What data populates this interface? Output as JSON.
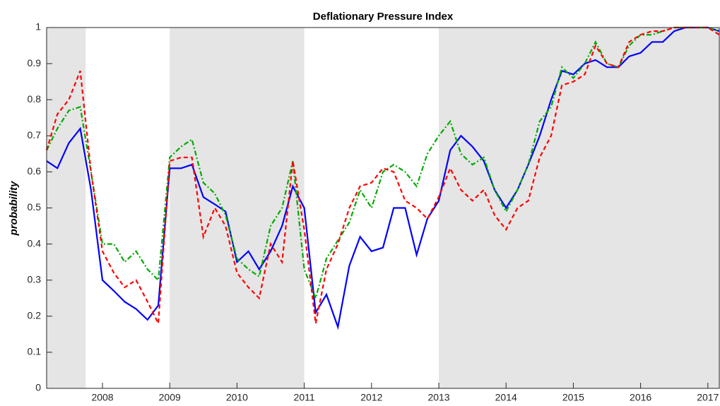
{
  "chart_data": {
    "type": "line",
    "title": "Deflationary Pressure Index",
    "y_label": "probability",
    "x": [
      2007.17,
      2007.33,
      2007.5,
      2007.67,
      2007.83,
      2008,
      2008.17,
      2008.33,
      2008.5,
      2008.67,
      2008.83,
      2009,
      2009.17,
      2009.33,
      2009.5,
      2009.67,
      2009.83,
      2010,
      2010.17,
      2010.33,
      2010.5,
      2010.67,
      2010.83,
      2011,
      2011.17,
      2011.33,
      2011.5,
      2011.67,
      2011.83,
      2012,
      2012.17,
      2012.33,
      2012.5,
      2012.67,
      2012.83,
      2013,
      2013.17,
      2013.33,
      2013.5,
      2013.67,
      2013.83,
      2014,
      2014.17,
      2014.33,
      2014.5,
      2014.67,
      2014.83,
      2015,
      2015.17,
      2015.33,
      2015.5,
      2015.67,
      2015.83,
      2016,
      2016.17,
      2016.33,
      2016.5,
      2016.67,
      2016.83,
      2017,
      2017.17
    ],
    "series": [
      {
        "color": "#0000ff",
        "linestyle": "solid",
        "values": [
          0.63,
          0.61,
          0.68,
          0.72,
          0.55,
          0.3,
          0.27,
          0.24,
          0.22,
          0.19,
          0.23,
          0.61,
          0.61,
          0.62,
          0.53,
          0.51,
          0.49,
          0.35,
          0.38,
          0.33,
          0.38,
          0.45,
          0.56,
          0.5,
          0.21,
          0.26,
          0.17,
          0.34,
          0.42,
          0.38,
          0.39,
          0.5,
          0.5,
          0.37,
          0.47,
          0.52,
          0.66,
          0.7,
          0.67,
          0.63,
          0.55,
          0.5,
          0.55,
          0.62,
          0.7,
          0.8,
          0.88,
          0.87,
          0.9,
          0.91,
          0.89,
          0.89,
          0.92,
          0.93,
          0.96,
          0.96,
          0.99,
          1,
          1,
          1,
          0.99
        ]
      },
      {
        "color": "#00aa00",
        "linestyle": "dashdot",
        "values": [
          0.66,
          0.72,
          0.77,
          0.78,
          0.6,
          0.4,
          0.4,
          0.35,
          0.38,
          0.33,
          0.3,
          0.64,
          0.67,
          0.69,
          0.57,
          0.54,
          0.48,
          0.36,
          0.33,
          0.31,
          0.45,
          0.5,
          0.63,
          0.33,
          0.25,
          0.36,
          0.41,
          0.46,
          0.55,
          0.5,
          0.6,
          0.62,
          0.6,
          0.56,
          0.65,
          0.7,
          0.74,
          0.65,
          0.62,
          0.64,
          0.55,
          0.49,
          0.55,
          0.62,
          0.74,
          0.78,
          0.89,
          0.86,
          0.9,
          0.96,
          0.9,
          0.89,
          0.95,
          0.98,
          0.98,
          0.99,
          1,
          1,
          1,
          1,
          0.99
        ]
      },
      {
        "color": "#ff0000",
        "linestyle": "dashed",
        "values": [
          0.66,
          0.76,
          0.8,
          0.88,
          0.6,
          0.38,
          0.32,
          0.28,
          0.3,
          0.24,
          0.18,
          0.63,
          0.64,
          0.64,
          0.42,
          0.5,
          0.45,
          0.32,
          0.28,
          0.25,
          0.4,
          0.35,
          0.63,
          0.44,
          0.18,
          0.33,
          0.4,
          0.5,
          0.56,
          0.57,
          0.61,
          0.6,
          0.52,
          0.5,
          0.47,
          0.53,
          0.61,
          0.55,
          0.52,
          0.55,
          0.48,
          0.44,
          0.5,
          0.52,
          0.64,
          0.7,
          0.84,
          0.85,
          0.87,
          0.95,
          0.9,
          0.89,
          0.96,
          0.98,
          0.99,
          0.99,
          1,
          1,
          1,
          1,
          0.98
        ]
      }
    ],
    "shaded_regions": [
      [
        2007.17,
        2007.75
      ],
      [
        2009,
        2011
      ],
      [
        2013,
        2017.17
      ]
    ],
    "shade_color": "#e5e5e5",
    "xlim": [
      2007.17,
      2017.17
    ],
    "xticks": [
      2008,
      2009,
      2010,
      2011,
      2012,
      2013,
      2014,
      2015,
      2016,
      2017
    ],
    "ylim": [
      0,
      1
    ],
    "yticks": [
      0,
      0.1,
      0.2,
      0.3,
      0.4,
      0.5,
      0.6,
      0.7,
      0.8,
      0.9,
      1
    ]
  }
}
